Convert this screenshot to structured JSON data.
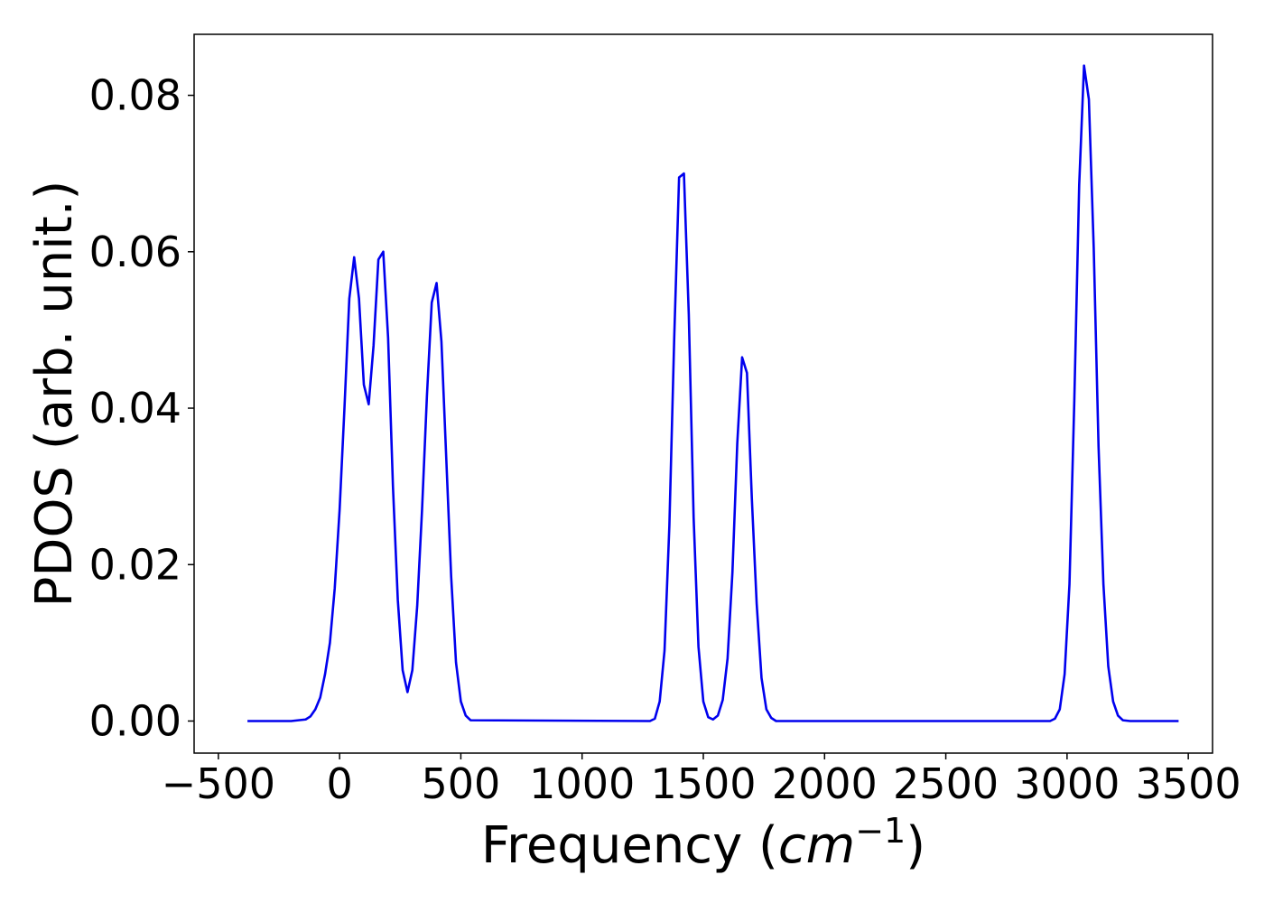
{
  "chart_data": {
    "type": "line",
    "title": "",
    "xlabel_main": "Frequency (",
    "xlabel_unit_base": "cm",
    "xlabel_unit_exp": "−1",
    "xlabel_close": ")",
    "ylabel": "PDOS (arb. unit.)",
    "xlim": [
      -600,
      3600
    ],
    "ylim": [
      -0.0041,
      0.0878
    ],
    "xticks": [
      -500,
      0,
      500,
      1000,
      1500,
      2000,
      2500,
      3000,
      3500
    ],
    "xtick_labels": [
      "−500",
      "0",
      "500",
      "1000",
      "1500",
      "2000",
      "2500",
      "3000",
      "3500"
    ],
    "yticks": [
      0.0,
      0.02,
      0.04,
      0.06,
      0.08
    ],
    "ytick_labels": [
      "0.00",
      "0.02",
      "0.04",
      "0.06",
      "0.08"
    ],
    "grid": false,
    "colors": {
      "line": "#0000ee",
      "axes": "#000000"
    },
    "series": [
      {
        "x": [
          -380,
          -200,
          -140,
          -120,
          -100,
          -80,
          -60,
          -40,
          -20,
          0,
          20,
          40,
          60,
          80,
          100,
          120,
          140,
          160,
          180,
          200,
          220,
          240,
          260,
          280,
          300,
          320,
          340,
          360,
          380,
          400,
          420,
          440,
          460,
          480,
          500,
          520,
          540,
          1280,
          1300,
          1320,
          1340,
          1360,
          1380,
          1400,
          1420,
          1440,
          1460,
          1480,
          1500,
          1520,
          1540,
          1560,
          1580,
          1600,
          1620,
          1640,
          1660,
          1680,
          1700,
          1720,
          1740,
          1760,
          1780,
          1800,
          2930,
          2950,
          2970,
          2990,
          3010,
          3030,
          3050,
          3070,
          3090,
          3110,
          3130,
          3150,
          3170,
          3190,
          3210,
          3230,
          3260,
          3460
        ],
        "y": [
          0.0,
          0.0,
          0.0002,
          0.0006,
          0.0015,
          0.003,
          0.006,
          0.01,
          0.017,
          0.027,
          0.04,
          0.054,
          0.0593,
          0.054,
          0.043,
          0.0405,
          0.048,
          0.059,
          0.06,
          0.049,
          0.03,
          0.0155,
          0.0065,
          0.0037,
          0.0065,
          0.0147,
          0.027,
          0.0415,
          0.0535,
          0.056,
          0.0485,
          0.0335,
          0.0185,
          0.0075,
          0.0025,
          0.0007,
          0.0001,
          0.0,
          0.0003,
          0.0025,
          0.009,
          0.025,
          0.049,
          0.0695,
          0.07,
          0.052,
          0.026,
          0.0095,
          0.0025,
          0.0005,
          0.0002,
          0.0007,
          0.0027,
          0.008,
          0.019,
          0.0355,
          0.0465,
          0.0445,
          0.0285,
          0.015,
          0.0055,
          0.0015,
          0.0004,
          0.0,
          0.0,
          0.0003,
          0.0015,
          0.006,
          0.0175,
          0.041,
          0.0685,
          0.0838,
          0.0795,
          0.0605,
          0.035,
          0.0175,
          0.007,
          0.0025,
          0.0007,
          0.0001,
          0.0,
          0.0
        ]
      }
    ]
  }
}
